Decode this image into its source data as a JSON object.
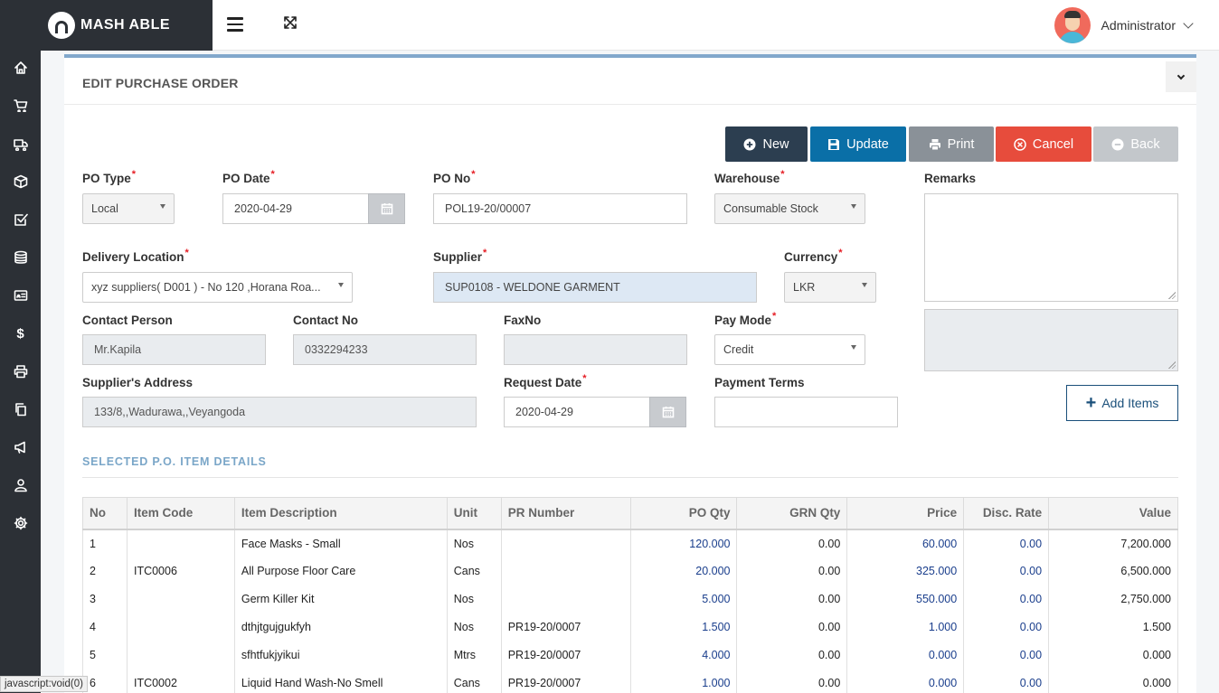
{
  "brand": {
    "name": "MASH ABLE"
  },
  "user": {
    "name": "Administrator"
  },
  "card": {
    "title": "EDIT PURCHASE ORDER"
  },
  "buttons": {
    "new": "New",
    "update": "Update",
    "print": "Print",
    "cancel": "Cancel",
    "back": "Back"
  },
  "colors": {
    "new": "#2c3e50",
    "update": "#0a6fa7",
    "print": "#8a9198",
    "cancel": "#e74c3c",
    "back": "#c3c7cb",
    "sidebar": "#2c3036"
  },
  "form": {
    "po_type": {
      "label": "PO Type",
      "value": "Local"
    },
    "po_date": {
      "label": "PO Date",
      "value": "2020-04-29"
    },
    "po_no": {
      "label": "PO No",
      "value": "POL19-20/00007"
    },
    "warehouse": {
      "label": "Warehouse",
      "value": "Consumable Stock"
    },
    "remarks": {
      "label": "Remarks"
    },
    "delivery_location": {
      "label": "Delivery Location",
      "value": "xyz suppliers( D001 ) - No 120 ,Horana Roa..."
    },
    "supplier": {
      "label": "Supplier",
      "value": "SUP0108 - WELDONE GARMENT"
    },
    "currency": {
      "label": "Currency",
      "value": "LKR"
    },
    "contact_person": {
      "label": "Contact Person",
      "value": "Mr.Kapila"
    },
    "contact_no": {
      "label": "Contact No",
      "value": "0332294233"
    },
    "fax_no": {
      "label": "FaxNo",
      "value": ""
    },
    "pay_mode": {
      "label": "Pay Mode",
      "value": "Credit"
    },
    "supplier_address": {
      "label": "Supplier's Address",
      "value": "133/8,,Wadurawa,,Veyangoda"
    },
    "request_date": {
      "label": "Request Date",
      "value": "2020-04-29"
    },
    "payment_terms": {
      "label": "Payment Terms",
      "value": ""
    },
    "add_items": "Add Items"
  },
  "items_section": {
    "title": "SELECTED P.O. ITEM DETAILS",
    "columns": [
      "No",
      "Item Code",
      "Item Description",
      "Unit",
      "PR Number",
      "PO Qty",
      "GRN Qty",
      "Price",
      "Disc. Rate",
      "Value"
    ],
    "rows": [
      {
        "no": "1",
        "code": "",
        "desc": "Face Masks - Small",
        "unit": "Nos",
        "pr": "",
        "po_qty": "120.000",
        "grn_qty": "0.00",
        "price": "60.000",
        "disc": "0.00",
        "value": "7,200.000"
      },
      {
        "no": "2",
        "code": "ITC0006",
        "desc": "All Purpose Floor Care",
        "unit": "Cans",
        "pr": "",
        "po_qty": "20.000",
        "grn_qty": "0.00",
        "price": "325.000",
        "disc": "0.00",
        "value": "6,500.000"
      },
      {
        "no": "3",
        "code": "",
        "desc": "Germ Killer Kit",
        "unit": "Nos",
        "pr": "",
        "po_qty": "5.000",
        "grn_qty": "0.00",
        "price": "550.000",
        "disc": "0.00",
        "value": "2,750.000"
      },
      {
        "no": "4",
        "code": "",
        "desc": "dthjtgujgukfyh",
        "unit": "Nos",
        "pr": "PR19-20/0007",
        "po_qty": "1.500",
        "grn_qty": "0.00",
        "price": "1.000",
        "disc": "0.00",
        "value": "1.500"
      },
      {
        "no": "5",
        "code": "",
        "desc": "sfhtfukjyikui",
        "unit": "Mtrs",
        "pr": "PR19-20/0007",
        "po_qty": "4.000",
        "grn_qty": "0.00",
        "price": "0.000",
        "disc": "0.00",
        "value": "0.000"
      },
      {
        "no": "6",
        "code": "ITC0002",
        "desc": "Liquid Hand Wash-No Smell",
        "unit": "Cans",
        "pr": "PR19-20/0007",
        "po_qty": "1.000",
        "grn_qty": "0.00",
        "price": "0.000",
        "disc": "0.00",
        "value": "0.000"
      }
    ]
  },
  "status_bar": "javascript:void(0)",
  "sidebar_icons": [
    "home-icon",
    "cart-icon",
    "truck-icon",
    "box-icon",
    "checkbox-icon",
    "database-icon",
    "id-card-icon",
    "dollar-icon",
    "printer-icon",
    "copy-icon",
    "megaphone-icon",
    "user-icon",
    "gear-icon"
  ]
}
